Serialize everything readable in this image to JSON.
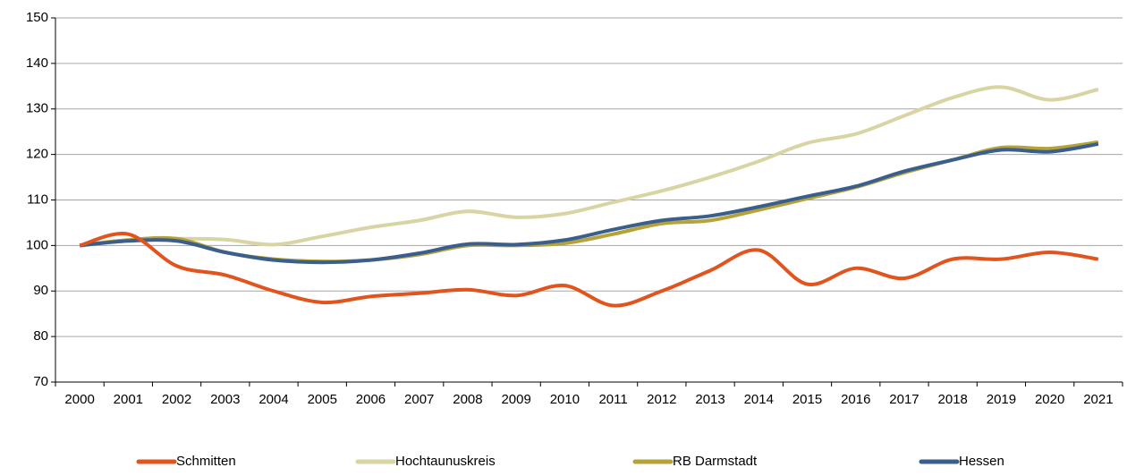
{
  "chart_data": {
    "type": "line",
    "categories": [
      "2000",
      "2001",
      "2002",
      "2003",
      "2004",
      "2005",
      "2006",
      "2007",
      "2008",
      "2009",
      "2010",
      "2011",
      "2012",
      "2013",
      "2014",
      "2015",
      "2016",
      "2017",
      "2018",
      "2019",
      "2020",
      "2021"
    ],
    "series": [
      {
        "name": "Hochtaunuskreis",
        "color": "#d9d4a3",
        "values": [
          100,
          101.2,
          101.5,
          101.3,
          100.2,
          102,
          104,
          105.5,
          107.5,
          106.2,
          107,
          109.5,
          112,
          115,
          118.5,
          122.5,
          124.5,
          128.5,
          132.5,
          134.8,
          132,
          134.3
        ]
      },
      {
        "name": "RB Darmstadt",
        "color": "#b5a33a",
        "values": [
          100,
          101.2,
          101.5,
          98.5,
          97,
          96.5,
          96.8,
          98,
          100,
          100,
          100.5,
          102.5,
          104.8,
          105.5,
          107.8,
          110.3,
          112.8,
          116,
          118.8,
          121.5,
          121.3,
          122.7
        ]
      },
      {
        "name": "Hessen",
        "color": "#3a5f8c",
        "values": [
          100,
          101,
          101,
          98.5,
          96.8,
          96.3,
          96.8,
          98.3,
          100.3,
          100.2,
          101.2,
          103.5,
          105.5,
          106.5,
          108.5,
          110.8,
          113,
          116.3,
          118.8,
          121,
          120.6,
          122.3
        ]
      },
      {
        "name": "Schmitten",
        "color": "#e2541e",
        "values": [
          100,
          102.5,
          95.5,
          93.5,
          90,
          87.5,
          88.8,
          89.5,
          90.3,
          89,
          91.2,
          86.8,
          90,
          94.5,
          99,
          91.5,
          95,
          92.8,
          97,
          97,
          98.5,
          97
        ]
      }
    ],
    "legend_order": [
      "Schmitten",
      "Hochtaunuskreis",
      "RB Darmstadt",
      "Hessen"
    ],
    "ylim": [
      70,
      150
    ],
    "yticks": [
      70,
      80,
      90,
      100,
      110,
      120,
      130,
      140,
      150
    ],
    "grid": true,
    "legend": "bottom"
  }
}
